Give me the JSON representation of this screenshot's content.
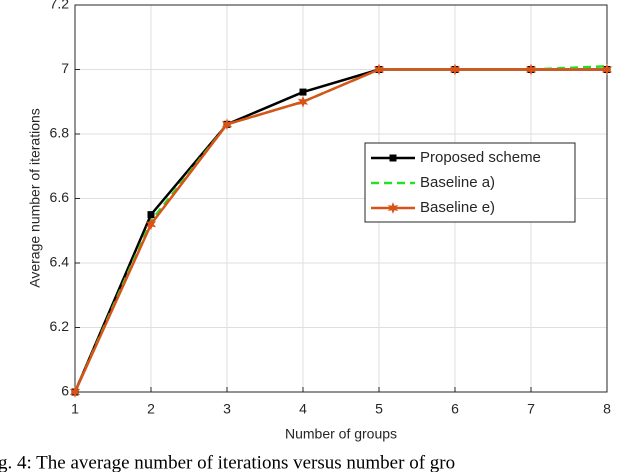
{
  "chart_data": {
    "type": "line",
    "x_label": "Number of groups",
    "y_label": "Average number of iterations",
    "caption": "g. 4: The average number of iterations versus number of gro",
    "x": [
      1,
      2,
      3,
      4,
      5,
      6,
      7,
      8
    ],
    "series": [
      {
        "name": "Proposed scheme",
        "color": "#000000",
        "marker": "square",
        "dash": false,
        "values": [
          6,
          6.55,
          6.83,
          6.93,
          7,
          7,
          7,
          7
        ]
      },
      {
        "name": "Baseline a)",
        "color": "#22e022",
        "marker": "none",
        "dash": true,
        "values": [
          6,
          6.53,
          6.83,
          6.9,
          7,
          7,
          7,
          7.01
        ]
      },
      {
        "name": "Baseline e)",
        "color": "#d95319",
        "marker": "star",
        "dash": false,
        "values": [
          6,
          6.52,
          6.83,
          6.9,
          7,
          7,
          7,
          7
        ]
      }
    ],
    "xlim": [
      1,
      8
    ],
    "xticks": [
      1,
      2,
      3,
      4,
      5,
      6,
      7,
      8
    ],
    "ylim": [
      6,
      7.2
    ],
    "yticks": [
      6,
      6.2,
      6.4,
      6.6,
      6.8,
      7,
      7.2
    ],
    "grid": true,
    "legend": "center right"
  }
}
